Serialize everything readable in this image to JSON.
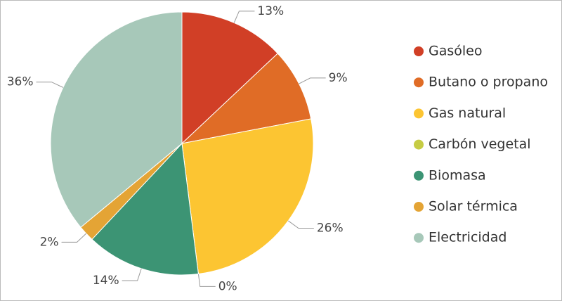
{
  "chart_data": {
    "type": "pie",
    "categories": [
      "Gasóleo",
      "Butano o propano",
      "Gas natural",
      "Carbón vegetal",
      "Biomasa",
      "Solar térmica",
      "Electricidad"
    ],
    "values": [
      13,
      9,
      26,
      0,
      14,
      2,
      36
    ],
    "value_labels": [
      "13%",
      "9%",
      "26%",
      "0%",
      "14%",
      "2%",
      "36%"
    ],
    "colors": [
      "#d13f26",
      "#e06c26",
      "#fcc532",
      "#c6cc44",
      "#3c9474",
      "#e4a435",
      "#a7c8b9"
    ],
    "legend": "right"
  }
}
